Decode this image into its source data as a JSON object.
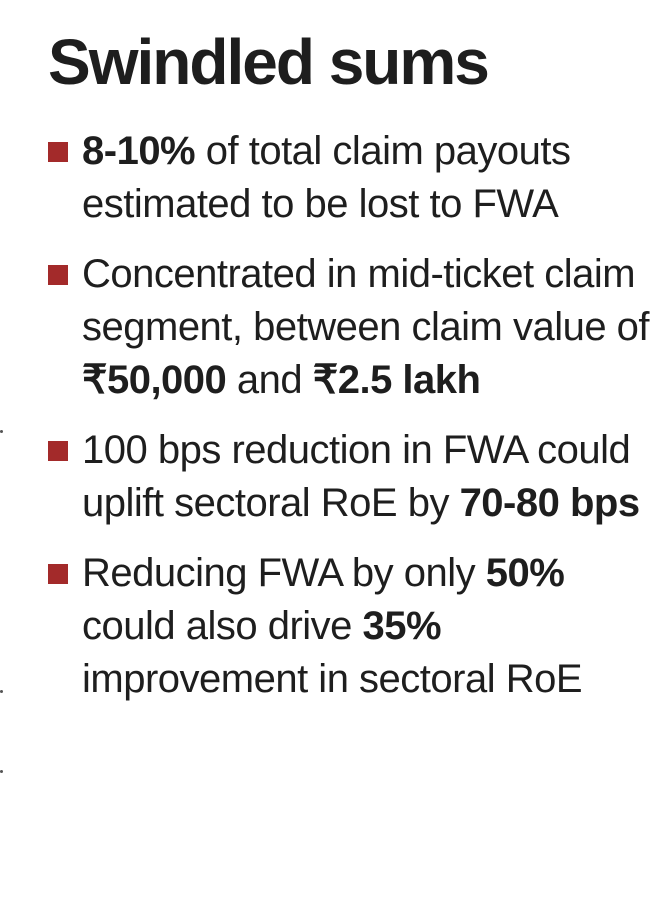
{
  "title": "Swindled sums",
  "accent_color": "#a32a2a",
  "bullets": [
    {
      "parts": [
        {
          "text": "8-10%",
          "bold": true
        },
        {
          "text": " of total claim payouts estimated to be lost to FWA",
          "bold": false
        }
      ]
    },
    {
      "parts": [
        {
          "text": "Concentrated in mid-ticket claim segment, between claim value of ",
          "bold": false
        },
        {
          "text": "₹50,000",
          "bold": true
        },
        {
          "text": " and ",
          "bold": false
        },
        {
          "text": "₹2.5 lakh",
          "bold": true
        }
      ]
    },
    {
      "parts": [
        {
          "text": "100 bps reduction in FWA could uplift sectoral RoE by ",
          "bold": false
        },
        {
          "text": "70-80 bps",
          "bold": true
        }
      ]
    },
    {
      "parts": [
        {
          "text": "Reducing FWA by only ",
          "bold": false
        },
        {
          "text": "50%",
          "bold": true
        },
        {
          "text": " could also drive ",
          "bold": false
        },
        {
          "text": "35%",
          "bold": true
        },
        {
          "text": " improvement in sectoral RoE",
          "bold": false
        }
      ]
    }
  ]
}
